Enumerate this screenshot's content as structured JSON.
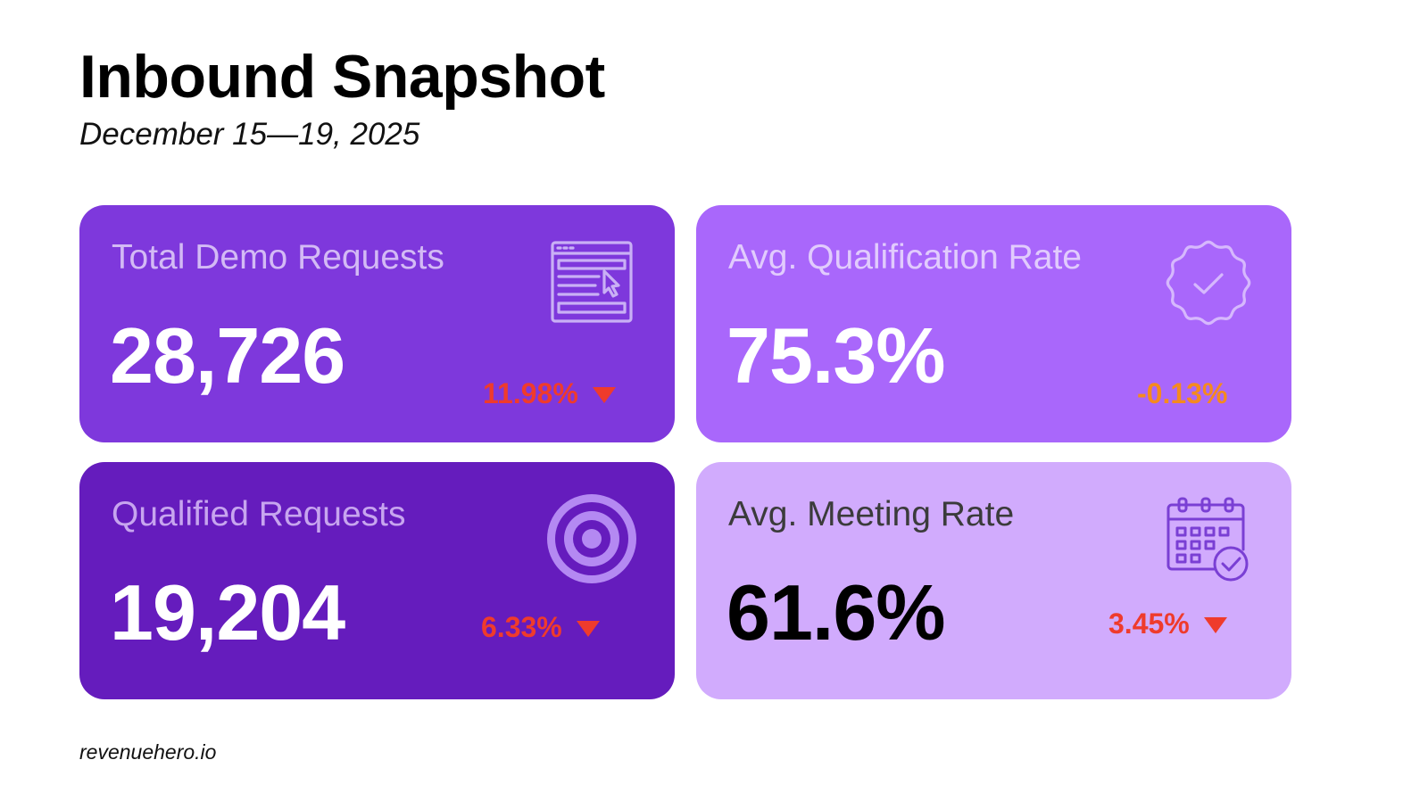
{
  "header": {
    "title": "Inbound Snapshot",
    "subtitle": "December 15—19, 2025"
  },
  "cards": [
    {
      "label": "Total Demo Requests",
      "value": "28,726",
      "change": "11.98%",
      "trend": "down",
      "icon": "web-form-cursor-icon",
      "background": "#7e38dc",
      "label_color": "#d3baf5",
      "value_color": "#ffffff",
      "change_color": "#ef3b2c"
    },
    {
      "label": "Avg. Qualification Rate",
      "value": "75.3%",
      "change": "-0.13%",
      "trend": "neutral",
      "icon": "verified-badge-icon",
      "background": "#a967fb",
      "label_color": "#e1cbfd",
      "value_color": "#ffffff",
      "change_color": "#f58a1f"
    },
    {
      "label": "Qualified Requests",
      "value": "19,204",
      "change": "6.33%",
      "trend": "down",
      "icon": "target-icon",
      "background": "#651cbd",
      "label_color": "#c7a5ef",
      "value_color": "#ffffff",
      "change_color": "#ef3b2c"
    },
    {
      "label": "Avg. Meeting Rate",
      "value": "61.6%",
      "change": "3.45%",
      "trend": "down",
      "icon": "calendar-check-icon",
      "background": "#d1abfd",
      "label_color": "#3b3b3b",
      "value_color": "#000000",
      "change_color": "#ef3b2c"
    }
  ],
  "footer": {
    "brand": "revenuehero.io"
  }
}
